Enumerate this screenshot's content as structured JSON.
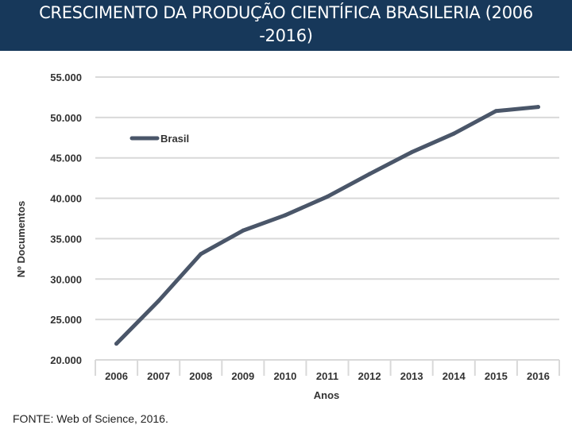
{
  "header": {
    "title": "CRESCIMENTO DA PRODUÇÃO CIENTÍFICA BRASILERIA (2006\n-2016)"
  },
  "chart_data": {
    "type": "line",
    "x": [
      "2006",
      "2007",
      "2008",
      "2009",
      "2010",
      "2011",
      "2012",
      "2013",
      "2014",
      "2015",
      "2016"
    ],
    "series": [
      {
        "name": "Brasil",
        "values": [
          22000,
          27300,
          33100,
          36000,
          37900,
          40200,
          43000,
          45700,
          48000,
          50800,
          51300
        ]
      }
    ],
    "xlabel": "Anos",
    "ylabel": "Nº Documentos",
    "ylim": [
      20000,
      55000
    ],
    "yticks": [
      20000,
      25000,
      30000,
      35000,
      40000,
      45000,
      50000,
      55000
    ],
    "ytick_labels": [
      "20.000",
      "25.000",
      "30.000",
      "35.000",
      "40.000",
      "45.000",
      "50.000",
      "55.000"
    ],
    "grid": true,
    "legend_position": "top-left",
    "colors": {
      "series": "#4a5669",
      "grid": "#d9d9d9"
    }
  },
  "footer": {
    "source": "FONTE: Web of Science, 2016."
  }
}
